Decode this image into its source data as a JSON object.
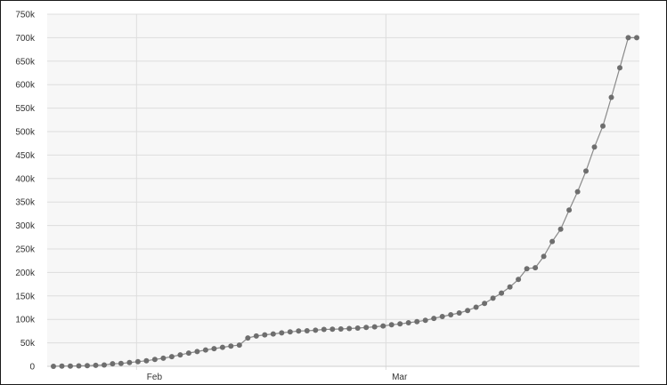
{
  "chart_data": {
    "type": "line",
    "title": "",
    "xlabel": "",
    "ylabel": "",
    "ylim": [
      0,
      750000
    ],
    "y_ticks": [
      0,
      50000,
      100000,
      150000,
      200000,
      250000,
      300000,
      350000,
      400000,
      450000,
      500000,
      550000,
      600000,
      650000,
      700000,
      750000
    ],
    "y_tick_labels": [
      "0",
      "50k",
      "100k",
      "150k",
      "200k",
      "250k",
      "300k",
      "350k",
      "400k",
      "450k",
      "500k",
      "550k",
      "600k",
      "650k",
      "700k",
      "750k"
    ],
    "x_tick_labels": [
      "Feb",
      "Mar"
    ],
    "x_tick_dates": [
      "2020-02-01",
      "2020-03-01"
    ],
    "xlim": [
      "2020-01-21",
      "2020-03-30"
    ],
    "grid": true,
    "legend": "none",
    "colors": {
      "line": "#8a8a8a",
      "marker": "#6e6e6e",
      "grid": "#dddddd",
      "plot_background": "#f7f7f7"
    },
    "series": [
      {
        "x": [
          "2020-01-21",
          "2020-01-22",
          "2020-01-23",
          "2020-01-24",
          "2020-01-25",
          "2020-01-26",
          "2020-01-27",
          "2020-01-28",
          "2020-01-29",
          "2020-01-30",
          "2020-01-31",
          "2020-02-01",
          "2020-02-02",
          "2020-02-03",
          "2020-02-04",
          "2020-02-05",
          "2020-02-06",
          "2020-02-07",
          "2020-02-08",
          "2020-02-09",
          "2020-02-10",
          "2020-02-11",
          "2020-02-12",
          "2020-02-13",
          "2020-02-14",
          "2020-02-15",
          "2020-02-16",
          "2020-02-17",
          "2020-02-18",
          "2020-02-19",
          "2020-02-20",
          "2020-02-21",
          "2020-02-22",
          "2020-02-23",
          "2020-02-24",
          "2020-02-25",
          "2020-02-26",
          "2020-02-27",
          "2020-02-28",
          "2020-02-29",
          "2020-03-01",
          "2020-03-02",
          "2020-03-03",
          "2020-03-04",
          "2020-03-05",
          "2020-03-06",
          "2020-03-07",
          "2020-03-08",
          "2020-03-09",
          "2020-03-10",
          "2020-03-11",
          "2020-03-12",
          "2020-03-13",
          "2020-03-14",
          "2020-03-15",
          "2020-03-16",
          "2020-03-17",
          "2020-03-18",
          "2020-03-19",
          "2020-03-20",
          "2020-03-21",
          "2020-03-22",
          "2020-03-23",
          "2020-03-24",
          "2020-03-25",
          "2020-03-26",
          "2020-03-27",
          "2020-03-28",
          "2020-03-29",
          "2020-03-30"
        ],
        "values": [
          0,
          500,
          600,
          900,
          1300,
          2000,
          2900,
          5500,
          6100,
          8200,
          9900,
          12000,
          14600,
          17300,
          20600,
          24500,
          28300,
          31500,
          34900,
          37600,
          40600,
          43100,
          45200,
          60400,
          64500,
          67100,
          69000,
          71300,
          73300,
          75200,
          75700,
          76800,
          78600,
          78900,
          79500,
          80400,
          81400,
          82700,
          84100,
          86000,
          88400,
          90300,
          92800,
          95300,
          98000,
          102000,
          106000,
          109800,
          113600,
          119000,
          126000,
          134000,
          145000,
          156000,
          169000,
          185000,
          208000,
          210000,
          234000,
          266000,
          292000,
          333000,
          372000,
          416000,
          467000,
          512000,
          573000,
          636000,
          700000,
          700000
        ]
      }
    ]
  }
}
